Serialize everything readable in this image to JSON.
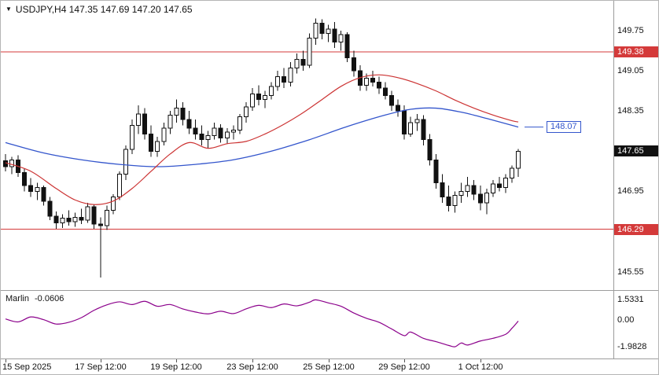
{
  "header": {
    "dropdown_icon": "▼",
    "symbol_info": "USDJPY,H4 147.35 147.69 147.20 147.65"
  },
  "chart_data": {
    "type": "candlestick",
    "title": "USDJPY H4",
    "y_axis": {
      "price_max": 150.27,
      "price_min": 145.23,
      "tick_labels": [
        {
          "text": "149.75",
          "price": 149.75
        },
        {
          "text": "149.05",
          "price": 149.05
        },
        {
          "text": "148.35",
          "price": 148.35
        },
        {
          "text": "146.95",
          "price": 146.95
        },
        {
          "text": "145.55",
          "price": 145.55
        }
      ]
    },
    "x_axis": {
      "labels": [
        {
          "text": "15 Sep 2025",
          "index": 0
        },
        {
          "text": "17 Sep 12:00",
          "index": 15
        },
        {
          "text": "19 Sep 12:00",
          "index": 27
        },
        {
          "text": "23 Sep 12:00",
          "index": 39
        },
        {
          "text": "25 Sep 12:00",
          "index": 51
        },
        {
          "text": "29 Sep 12:00",
          "index": 63
        },
        {
          "text": "1 Oct 12:00",
          "index": 75
        }
      ]
    },
    "candles": [
      [
        147.48,
        147.6,
        147.3,
        147.38
      ],
      [
        147.38,
        147.55,
        147.25,
        147.5
      ],
      [
        147.5,
        147.58,
        147.2,
        147.28
      ],
      [
        147.28,
        147.35,
        146.95,
        147.05
      ],
      [
        147.05,
        147.18,
        146.85,
        146.95
      ],
      [
        146.95,
        147.1,
        146.8,
        147.02
      ],
      [
        147.02,
        147.05,
        146.7,
        146.78
      ],
      [
        146.78,
        146.85,
        146.45,
        146.52
      ],
      [
        146.52,
        146.6,
        146.3,
        146.4
      ],
      [
        146.4,
        146.55,
        146.31,
        146.48
      ],
      [
        146.48,
        146.62,
        146.35,
        146.42
      ],
      [
        146.42,
        146.58,
        146.33,
        146.5
      ],
      [
        146.5,
        146.65,
        146.38,
        146.45
      ],
      [
        146.45,
        146.75,
        146.4,
        146.68
      ],
      [
        146.68,
        146.72,
        146.3,
        146.38
      ],
      [
        146.38,
        146.5,
        145.45,
        146.35
      ],
      [
        146.35,
        146.7,
        146.28,
        146.62
      ],
      [
        146.62,
        146.9,
        146.55,
        146.85
      ],
      [
        146.85,
        147.3,
        146.8,
        147.25
      ],
      [
        147.25,
        147.75,
        147.15,
        147.68
      ],
      [
        147.68,
        148.2,
        147.6,
        148.1
      ],
      [
        148.1,
        148.45,
        147.95,
        148.3
      ],
      [
        148.3,
        148.4,
        147.85,
        147.95
      ],
      [
        147.95,
        148.1,
        147.55,
        147.65
      ],
      [
        147.65,
        147.9,
        147.55,
        147.82
      ],
      [
        147.82,
        148.15,
        147.75,
        148.05
      ],
      [
        148.05,
        148.35,
        147.95,
        148.28
      ],
      [
        148.28,
        148.55,
        148.15,
        148.4
      ],
      [
        148.4,
        148.5,
        148.1,
        148.2
      ],
      [
        148.2,
        148.35,
        147.95,
        148.05
      ],
      [
        148.05,
        148.2,
        147.85,
        147.95
      ],
      [
        147.95,
        148.1,
        147.75,
        147.85
      ],
      [
        147.85,
        148.0,
        147.7,
        147.92
      ],
      [
        147.92,
        148.15,
        147.85,
        148.05
      ],
      [
        148.05,
        148.12,
        147.8,
        147.88
      ],
      [
        147.88,
        148.05,
        147.78,
        147.98
      ],
      [
        147.98,
        148.1,
        147.85,
        148.02
      ],
      [
        148.02,
        148.3,
        147.95,
        148.25
      ],
      [
        148.25,
        148.5,
        148.15,
        148.42
      ],
      [
        148.42,
        148.75,
        148.35,
        148.65
      ],
      [
        148.65,
        148.8,
        148.45,
        148.55
      ],
      [
        148.55,
        148.7,
        148.4,
        148.62
      ],
      [
        148.62,
        148.85,
        148.55,
        148.78
      ],
      [
        148.78,
        149.05,
        148.7,
        148.95
      ],
      [
        148.95,
        149.1,
        148.75,
        148.85
      ],
      [
        148.85,
        149.2,
        148.78,
        149.1
      ],
      [
        149.1,
        149.35,
        149.0,
        149.25
      ],
      [
        149.25,
        149.4,
        149.05,
        149.15
      ],
      [
        149.15,
        149.7,
        149.1,
        149.62
      ],
      [
        149.62,
        149.96,
        149.5,
        149.88
      ],
      [
        149.88,
        149.95,
        149.6,
        149.7
      ],
      [
        149.7,
        149.85,
        149.55,
        149.78
      ],
      [
        149.78,
        149.9,
        149.45,
        149.55
      ],
      [
        149.55,
        149.75,
        149.4,
        149.68
      ],
      [
        149.68,
        149.72,
        149.2,
        149.28
      ],
      [
        149.28,
        149.4,
        148.95,
        149.05
      ],
      [
        149.05,
        149.15,
        148.7,
        148.8
      ],
      [
        148.8,
        149.0,
        148.7,
        148.92
      ],
      [
        148.92,
        149.05,
        148.78,
        148.85
      ],
      [
        148.85,
        148.95,
        148.65,
        148.75
      ],
      [
        148.75,
        148.85,
        148.55,
        148.62
      ],
      [
        148.62,
        148.7,
        148.35,
        148.45
      ],
      [
        148.45,
        148.55,
        148.25,
        148.35
      ],
      [
        148.35,
        148.45,
        147.85,
        147.95
      ],
      [
        147.95,
        148.25,
        147.9,
        148.15
      ],
      [
        148.15,
        148.3,
        148.0,
        148.2
      ],
      [
        148.2,
        148.28,
        147.75,
        147.85
      ],
      [
        147.85,
        147.95,
        147.4,
        147.5
      ],
      [
        147.5,
        147.6,
        147.0,
        147.1
      ],
      [
        147.1,
        147.25,
        146.75,
        146.85
      ],
      [
        146.85,
        147.05,
        146.6,
        146.7
      ],
      [
        146.7,
        146.95,
        146.58,
        146.88
      ],
      [
        146.88,
        147.1,
        146.75,
        146.95
      ],
      [
        146.95,
        147.2,
        146.85,
        147.05
      ],
      [
        147.05,
        147.15,
        146.8,
        146.9
      ],
      [
        146.9,
        147.05,
        146.62,
        146.75
      ],
      [
        146.75,
        147.0,
        146.55,
        146.92
      ],
      [
        146.92,
        147.15,
        146.85,
        147.08
      ],
      [
        147.08,
        147.2,
        146.95,
        147.02
      ],
      [
        147.02,
        147.25,
        146.92,
        147.18
      ],
      [
        147.18,
        147.4,
        147.1,
        147.35
      ],
      [
        147.35,
        147.69,
        147.2,
        147.65
      ]
    ],
    "overlays": {
      "hlines": [
        {
          "label": "149.38",
          "price": 149.38,
          "color": "#d43a3a"
        },
        {
          "label": "146.29",
          "price": 146.29,
          "color": "#d43a3a"
        }
      ],
      "ma_fast": {
        "color": "#cc3333",
        "points": [
          [
            0,
            147.45
          ],
          [
            4,
            147.3
          ],
          [
            8,
            147.0
          ],
          [
            11,
            146.8
          ],
          [
            14,
            146.72
          ],
          [
            17,
            146.78
          ],
          [
            20,
            147.0
          ],
          [
            23,
            147.3
          ],
          [
            26,
            147.6
          ],
          [
            29,
            147.8
          ],
          [
            32,
            147.7
          ],
          [
            35,
            147.78
          ],
          [
            38,
            147.82
          ],
          [
            41,
            147.95
          ],
          [
            44,
            148.12
          ],
          [
            47,
            148.32
          ],
          [
            50,
            148.55
          ],
          [
            53,
            148.78
          ],
          [
            56,
            148.93
          ],
          [
            59,
            148.98
          ],
          [
            62,
            148.93
          ],
          [
            65,
            148.83
          ],
          [
            68,
            148.7
          ],
          [
            71,
            148.54
          ],
          [
            74,
            148.4
          ],
          [
            77,
            148.28
          ],
          [
            80,
            148.18
          ],
          [
            81,
            148.16
          ]
        ]
      },
      "ma_slow": {
        "color": "#3355cc",
        "last_value": 148.07,
        "last_value_label": "148.07",
        "points": [
          [
            0,
            147.8
          ],
          [
            6,
            147.62
          ],
          [
            12,
            147.5
          ],
          [
            18,
            147.42
          ],
          [
            24,
            147.38
          ],
          [
            30,
            147.42
          ],
          [
            36,
            147.5
          ],
          [
            42,
            147.65
          ],
          [
            48,
            147.85
          ],
          [
            54,
            148.08
          ],
          [
            60,
            148.28
          ],
          [
            64,
            148.38
          ],
          [
            68,
            148.4
          ],
          [
            72,
            148.33
          ],
          [
            76,
            148.22
          ],
          [
            81,
            148.07
          ]
        ]
      }
    },
    "current_price": {
      "label": "147.65",
      "value": 147.65
    },
    "indicator": {
      "name": "Marlin",
      "value_label": "-0.0606",
      "color": "#8b008b",
      "range": {
        "max": 2.2,
        "min": -2.8
      },
      "scale_labels": [
        {
          "text": "1.5331",
          "value": 1.5331
        },
        {
          "text": "0.00",
          "value": 0
        },
        {
          "text": "-1.9828",
          "value": -1.9828
        }
      ],
      "points": [
        [
          0,
          0.1
        ],
        [
          2,
          -0.12
        ],
        [
          4,
          0.25
        ],
        [
          6,
          0.05
        ],
        [
          8,
          -0.28
        ],
        [
          10,
          -0.15
        ],
        [
          12,
          0.2
        ],
        [
          14,
          0.75
        ],
        [
          16,
          1.15
        ],
        [
          18,
          1.38
        ],
        [
          20,
          1.18
        ],
        [
          22,
          1.42
        ],
        [
          24,
          1.05
        ],
        [
          26,
          1.18
        ],
        [
          28,
          0.85
        ],
        [
          30,
          0.62
        ],
        [
          32,
          0.48
        ],
        [
          34,
          0.68
        ],
        [
          36,
          0.5
        ],
        [
          38,
          0.85
        ],
        [
          40,
          1.12
        ],
        [
          42,
          0.95
        ],
        [
          44,
          1.22
        ],
        [
          46,
          1.08
        ],
        [
          48,
          1.35
        ],
        [
          49,
          1.53
        ],
        [
          51,
          1.3
        ],
        [
          53,
          1.05
        ],
        [
          55,
          0.55
        ],
        [
          57,
          0.15
        ],
        [
          59,
          -0.15
        ],
        [
          61,
          -0.65
        ],
        [
          63,
          -1.15
        ],
        [
          64,
          -0.88
        ],
        [
          66,
          -1.35
        ],
        [
          68,
          -1.6
        ],
        [
          70,
          -1.88
        ],
        [
          71,
          -1.98
        ],
        [
          72,
          -1.7
        ],
        [
          73,
          -1.85
        ],
        [
          75,
          -1.55
        ],
        [
          77,
          -1.35
        ],
        [
          79,
          -1.05
        ],
        [
          80,
          -0.6
        ],
        [
          81,
          -0.06
        ]
      ]
    }
  }
}
